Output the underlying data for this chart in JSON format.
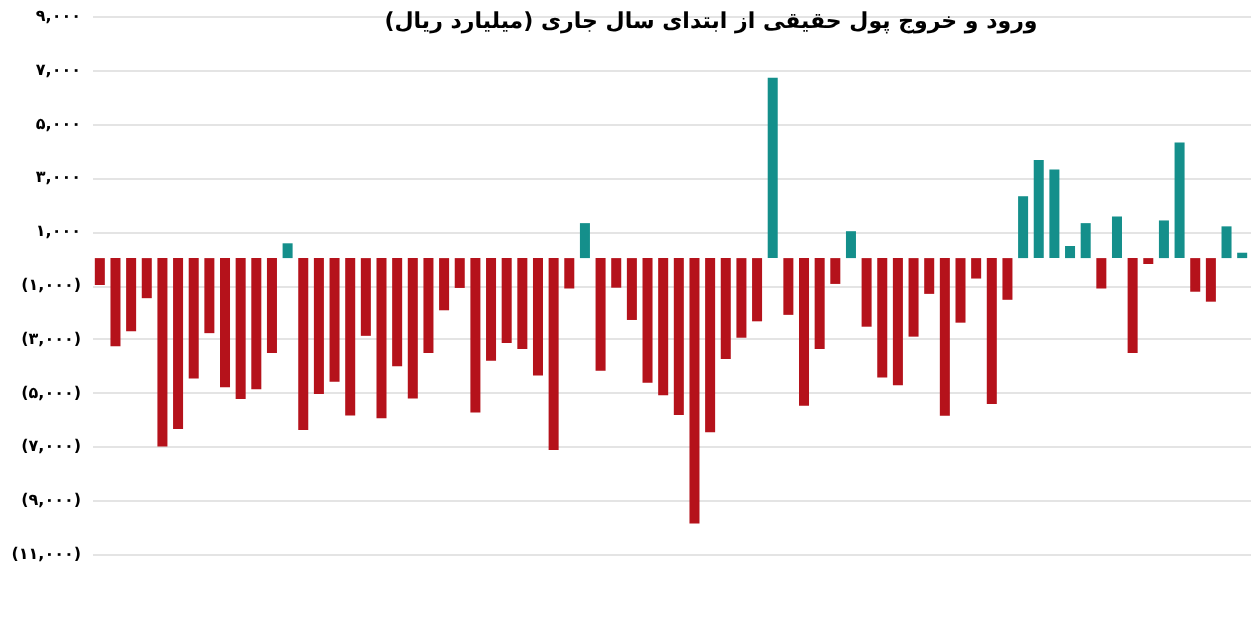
{
  "chart_data": {
    "type": "bar",
    "title": "ورود و خروج پول حقیقی از ابتدای سال جاری (میلیارد ریال)",
    "categories": [
      null,
      null,
      null,
      null,
      null,
      null,
      null,
      null,
      null,
      null,
      null,
      null,
      null,
      null,
      null,
      null,
      null,
      null,
      null,
      null,
      null,
      null,
      null,
      null,
      null,
      null,
      null,
      null,
      null,
      null,
      null,
      null,
      null,
      null,
      null,
      null,
      null,
      null,
      null,
      null,
      null,
      null,
      null,
      null,
      null,
      null,
      null,
      null,
      null,
      null,
      null,
      null,
      null,
      null,
      null,
      null,
      null,
      null,
      null,
      null,
      null,
      null,
      null,
      null,
      null,
      null,
      null,
      null,
      null,
      null,
      null,
      null,
      null,
      null
    ],
    "values": [
      -1000,
      -3280,
      -2720,
      -1490,
      -7000,
      -6350,
      -4480,
      -2790,
      -4800,
      -5240,
      -4880,
      -3530,
      550,
      -6390,
      -5050,
      -4600,
      -5850,
      -2890,
      -5950,
      -4020,
      -5220,
      -3530,
      -1940,
      -1110,
      -5740,
      -3820,
      -3160,
      -3380,
      -4360,
      -7130,
      -1130,
      1300,
      -4190,
      -1100,
      -2300,
      -4630,
      -5100,
      -5830,
      -9870,
      -6470,
      -3750,
      -2960,
      -2350,
      6700,
      -2110,
      -5490,
      -3380,
      -960,
      1000,
      -2550,
      -4440,
      -4730,
      -2920,
      -1330,
      -5860,
      -2400,
      -760,
      -5420,
      -1550,
      2300,
      3650,
      3290,
      450,
      1300,
      -1130,
      1550,
      -3530,
      -220,
      1400,
      4300,
      -1250,
      -1620,
      1180,
      200
    ],
    "colors": [
      "#b5121b",
      "#b5121b",
      "#b5121b",
      "#b5121b",
      "#b5121b",
      "#b5121b",
      "#b5121b",
      "#b5121b",
      "#b5121b",
      "#b5121b",
      "#b5121b",
      "#b5121b",
      "#148f8b",
      "#b5121b",
      "#b5121b",
      "#b5121b",
      "#b5121b",
      "#b5121b",
      "#b5121b",
      "#b5121b",
      "#b5121b",
      "#b5121b",
      "#b5121b",
      "#b5121b",
      "#b5121b",
      "#b5121b",
      "#b5121b",
      "#b5121b",
      "#b5121b",
      "#b5121b",
      "#b5121b",
      "#148f8b",
      "#b5121b",
      "#b5121b",
      "#b5121b",
      "#b5121b",
      "#b5121b",
      "#b5121b",
      "#b5121b",
      "#b5121b",
      "#b5121b",
      "#b5121b",
      "#b5121b",
      "#148f8b",
      "#b5121b",
      "#b5121b",
      "#b5121b",
      "#b5121b",
      "#148f8b",
      "#b5121b",
      "#b5121b",
      "#b5121b",
      "#b5121b",
      "#b5121b",
      "#b5121b",
      "#b5121b",
      "#b5121b",
      "#b5121b",
      "#b5121b",
      "#148f8b",
      "#148f8b",
      "#148f8b",
      "#148f8b",
      "#148f8b",
      "#b5121b",
      "#148f8b",
      "#b5121b",
      "#b5121b",
      "#148f8b",
      "#148f8b",
      "#b5121b",
      "#b5121b",
      "#148f8b",
      "#148f8b"
    ],
    "ylim": [
      -11000,
      9000
    ],
    "yticks": [
      {
        "value": 9000,
        "label": "۹,۰۰۰"
      },
      {
        "value": 7000,
        "label": "۷,۰۰۰"
      },
      {
        "value": 5000,
        "label": "۵,۰۰۰"
      },
      {
        "value": 3000,
        "label": "۳,۰۰۰"
      },
      {
        "value": 1000,
        "label": "۱,۰۰۰"
      },
      {
        "value": -1000,
        "label": "(۱,۰۰۰)"
      },
      {
        "value": -3000,
        "label": "(۳,۰۰۰)"
      },
      {
        "value": -5000,
        "label": "(۵,۰۰۰)"
      },
      {
        "value": -7000,
        "label": "(۷,۰۰۰)"
      },
      {
        "value": -9000,
        "label": "(۹,۰۰۰)"
      },
      {
        "value": -11000,
        "label": "(۱۱,۰۰۰)"
      }
    ],
    "grid": "y"
  }
}
